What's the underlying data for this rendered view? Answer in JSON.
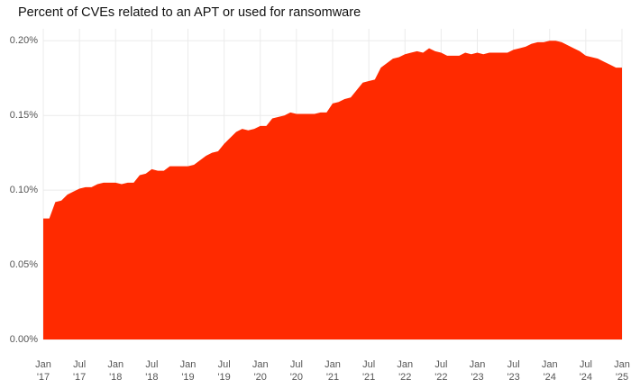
{
  "chart_data": {
    "type": "area",
    "title": "Percent of CVEs related to an APT or used for ransomware",
    "color": "#ff2a00",
    "grid": true,
    "x": [
      "2017-01",
      "2017-02",
      "2017-03",
      "2017-04",
      "2017-05",
      "2017-06",
      "2017-07",
      "2017-08",
      "2017-09",
      "2017-10",
      "2017-11",
      "2017-12",
      "2018-01",
      "2018-02",
      "2018-03",
      "2018-04",
      "2018-05",
      "2018-06",
      "2018-07",
      "2018-08",
      "2018-09",
      "2018-10",
      "2018-11",
      "2018-12",
      "2019-01",
      "2019-02",
      "2019-03",
      "2019-04",
      "2019-05",
      "2019-06",
      "2019-07",
      "2019-08",
      "2019-09",
      "2019-10",
      "2019-11",
      "2019-12",
      "2020-01",
      "2020-02",
      "2020-03",
      "2020-04",
      "2020-05",
      "2020-06",
      "2020-07",
      "2020-08",
      "2020-09",
      "2020-10",
      "2020-11",
      "2020-12",
      "2021-01",
      "2021-02",
      "2021-03",
      "2021-04",
      "2021-05",
      "2021-06",
      "2021-07",
      "2021-08",
      "2021-09",
      "2021-10",
      "2021-11",
      "2021-12",
      "2022-01",
      "2022-02",
      "2022-03",
      "2022-04",
      "2022-05",
      "2022-06",
      "2022-07",
      "2022-08",
      "2022-09",
      "2022-10",
      "2022-11",
      "2022-12",
      "2023-01",
      "2023-02",
      "2023-03",
      "2023-04",
      "2023-05",
      "2023-06",
      "2023-07",
      "2023-08",
      "2023-09",
      "2023-10",
      "2023-11",
      "2023-12",
      "2024-01",
      "2024-02",
      "2024-03",
      "2024-04",
      "2024-05",
      "2024-06",
      "2024-07",
      "2024-08",
      "2024-09",
      "2024-10",
      "2024-11",
      "2024-12",
      "2025-01"
    ],
    "values": [
      0.081,
      0.081,
      0.092,
      0.093,
      0.097,
      0.099,
      0.101,
      0.102,
      0.102,
      0.104,
      0.105,
      0.105,
      0.105,
      0.104,
      0.105,
      0.105,
      0.11,
      0.111,
      0.114,
      0.113,
      0.113,
      0.116,
      0.116,
      0.116,
      0.116,
      0.117,
      0.12,
      0.123,
      0.125,
      0.126,
      0.131,
      0.135,
      0.139,
      0.141,
      0.14,
      0.141,
      0.143,
      0.143,
      0.148,
      0.149,
      0.15,
      0.152,
      0.151,
      0.151,
      0.151,
      0.151,
      0.152,
      0.152,
      0.158,
      0.159,
      0.161,
      0.162,
      0.167,
      0.172,
      0.173,
      0.174,
      0.182,
      0.185,
      0.188,
      0.189,
      0.191,
      0.192,
      0.193,
      0.192,
      0.195,
      0.193,
      0.192,
      0.19,
      0.19,
      0.19,
      0.192,
      0.191,
      0.192,
      0.191,
      0.192,
      0.192,
      0.192,
      0.192,
      0.194,
      0.195,
      0.196,
      0.198,
      0.199,
      0.199,
      0.2,
      0.2,
      0.199,
      0.197,
      0.195,
      0.193,
      0.19,
      0.189,
      0.188,
      0.186,
      0.184,
      0.182,
      0.182
    ],
    "xlim": [
      "2017-01",
      "2025-01"
    ],
    "xticks": [
      {
        "value": "2017-01",
        "label": [
          "Jan",
          "'17"
        ]
      },
      {
        "value": "2017-07",
        "label": [
          "Jul",
          "'17"
        ]
      },
      {
        "value": "2018-01",
        "label": [
          "Jan",
          "'18"
        ]
      },
      {
        "value": "2018-07",
        "label": [
          "Jul",
          "'18"
        ]
      },
      {
        "value": "2019-01",
        "label": [
          "Jan",
          "'19"
        ]
      },
      {
        "value": "2019-07",
        "label": [
          "Jul",
          "'19"
        ]
      },
      {
        "value": "2020-01",
        "label": [
          "Jan",
          "'20"
        ]
      },
      {
        "value": "2020-07",
        "label": [
          "Jul",
          "'20"
        ]
      },
      {
        "value": "2021-01",
        "label": [
          "Jan",
          "'21"
        ]
      },
      {
        "value": "2021-07",
        "label": [
          "Jul",
          "'21"
        ]
      },
      {
        "value": "2022-01",
        "label": [
          "Jan",
          "'22"
        ]
      },
      {
        "value": "2022-07",
        "label": [
          "Jul",
          "'22"
        ]
      },
      {
        "value": "2023-01",
        "label": [
          "Jan",
          "'23"
        ]
      },
      {
        "value": "2023-07",
        "label": [
          "Jul",
          "'23"
        ]
      },
      {
        "value": "2024-01",
        "label": [
          "Jan",
          "'24"
        ]
      },
      {
        "value": "2024-07",
        "label": [
          "Jul",
          "'24"
        ]
      },
      {
        "value": "2025-01",
        "label": [
          "Jan",
          "'25"
        ]
      }
    ],
    "ylim": [
      0,
      0.208
    ],
    "yticks": [
      {
        "value": 0,
        "label": "0.00%"
      },
      {
        "value": 0.05,
        "label": "0.05%"
      },
      {
        "value": 0.1,
        "label": "0.10%"
      },
      {
        "value": 0.15,
        "label": "0.15%"
      },
      {
        "value": 0.2,
        "label": "0.20%"
      }
    ]
  }
}
